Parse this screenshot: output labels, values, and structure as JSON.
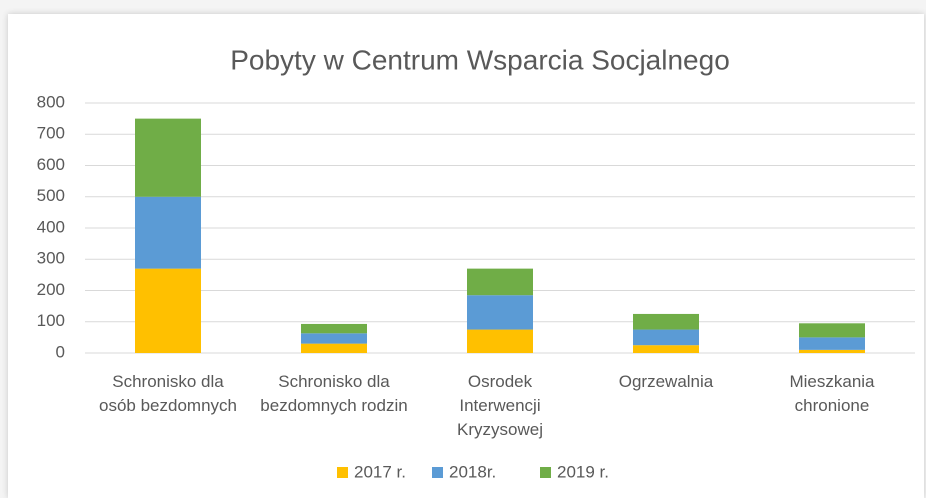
{
  "chart_data": {
    "type": "stacked_bar",
    "title": "Pobyty w Centrum Wsparcia Socjalnego",
    "categories": [
      "Schronisko dla osób bezdomnych",
      "Schronisko dla bezdomnych rodzin",
      "Osrodek Interwencji Kryzysowej",
      "Ogrzewalnia",
      "Mieszkania chronione"
    ],
    "series": [
      {
        "name": "2017 r.",
        "color": "#ffc000",
        "values": [
          270,
          30,
          75,
          25,
          10
        ]
      },
      {
        "name": "2018r.",
        "color": "#5b9bd5",
        "values": [
          230,
          33,
          110,
          50,
          40
        ]
      },
      {
        "name": "2019 r.",
        "color": "#70ad47",
        "values": [
          250,
          30,
          85,
          50,
          45
        ]
      }
    ],
    "ylim": [
      0,
      800
    ],
    "yticks": [
      0,
      100,
      200,
      300,
      400,
      500,
      600,
      700,
      800
    ],
    "grid": true,
    "legend": "bottom"
  }
}
